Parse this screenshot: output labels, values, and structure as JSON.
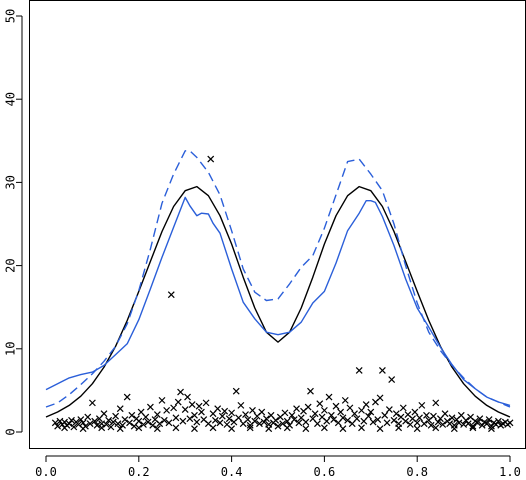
{
  "chart_data": {
    "type": "line",
    "title": "",
    "xlabel": "",
    "ylabel": "",
    "xlim": [
      0,
      1
    ],
    "ylim": [
      0,
      50
    ],
    "x_ticks": [
      "0.0",
      "0.2",
      "0.4",
      "0.6",
      "0.8",
      "1.0"
    ],
    "y_ticks": [
      "0",
      "10",
      "20",
      "30",
      "40",
      "50"
    ],
    "x_tick_values": [
      0,
      0.2,
      0.4,
      0.6,
      0.8,
      1.0
    ],
    "y_tick_values": [
      0,
      10,
      20,
      30,
      40,
      50
    ],
    "grid": false,
    "series": [
      {
        "style": "solid",
        "color": "#000000",
        "x": [
          0,
          0.025,
          0.05,
          0.075,
          0.1,
          0.125,
          0.15,
          0.175,
          0.2,
          0.225,
          0.25,
          0.275,
          0.3,
          0.325,
          0.35,
          0.375,
          0.4,
          0.425,
          0.45,
          0.475,
          0.5,
          0.525,
          0.55,
          0.575,
          0.6,
          0.625,
          0.65,
          0.675,
          0.7,
          0.725,
          0.75,
          0.775,
          0.8,
          0.825,
          0.85,
          0.875,
          0.9,
          0.925,
          0.95,
          0.975,
          1.0
        ],
        "y": [
          1.8,
          2.4,
          3.2,
          4.3,
          5.8,
          7.8,
          10.3,
          13.4,
          16.9,
          20.5,
          24.1,
          27.1,
          29.0,
          29.5,
          28.4,
          26.0,
          22.6,
          18.6,
          14.9,
          12.0,
          10.8,
          12.0,
          14.9,
          18.6,
          22.6,
          26.0,
          28.4,
          29.5,
          29.0,
          27.1,
          24.1,
          20.5,
          16.9,
          13.4,
          10.3,
          7.8,
          5.8,
          4.3,
          3.2,
          2.4,
          1.8
        ]
      },
      {
        "style": "solid",
        "color": "#2b5fd9",
        "x": [
          0,
          0.025,
          0.05,
          0.075,
          0.1,
          0.125,
          0.15,
          0.175,
          0.2,
          0.225,
          0.25,
          0.275,
          0.3,
          0.31,
          0.325,
          0.335,
          0.35,
          0.36,
          0.375,
          0.4,
          0.425,
          0.45,
          0.475,
          0.5,
          0.525,
          0.55,
          0.575,
          0.6,
          0.625,
          0.65,
          0.675,
          0.69,
          0.7,
          0.71,
          0.725,
          0.75,
          0.775,
          0.8,
          0.825,
          0.85,
          0.875,
          0.9,
          0.925,
          0.95,
          0.975,
          1.0
        ],
        "y": [
          5.1,
          5.8,
          6.5,
          6.9,
          7.2,
          8.0,
          9.3,
          10.6,
          13.5,
          17.2,
          21.0,
          24.6,
          28.2,
          27.2,
          26.0,
          26.3,
          26.2,
          25.1,
          23.9,
          19.6,
          15.6,
          13.6,
          12.0,
          11.7,
          12.0,
          13.2,
          15.5,
          16.9,
          20.3,
          24.2,
          26.3,
          27.8,
          27.8,
          27.6,
          25.9,
          22.4,
          18.4,
          14.9,
          12.6,
          10.2,
          8.1,
          6.3,
          5.2,
          4.2,
          3.6,
          3.2
        ]
      },
      {
        "style": "dashed",
        "color": "#2b5fd9",
        "x": [
          0,
          0.025,
          0.05,
          0.075,
          0.1,
          0.125,
          0.15,
          0.175,
          0.2,
          0.225,
          0.25,
          0.275,
          0.3,
          0.31,
          0.325,
          0.35,
          0.375,
          0.4,
          0.425,
          0.45,
          0.475,
          0.5,
          0.525,
          0.55,
          0.575,
          0.6,
          0.625,
          0.65,
          0.675,
          0.7,
          0.725,
          0.75,
          0.775,
          0.8,
          0.825,
          0.85,
          0.875,
          0.9,
          0.925,
          0.95,
          0.975,
          1.0
        ],
        "y": [
          3.0,
          3.5,
          4.5,
          5.7,
          7.0,
          8.5,
          10.3,
          13.0,
          17.0,
          22.0,
          27.5,
          31.0,
          33.8,
          33.8,
          33.0,
          31.2,
          28.5,
          24.2,
          19.6,
          16.8,
          15.8,
          16.0,
          17.8,
          19.8,
          21.2,
          24.5,
          28.5,
          32.5,
          32.8,
          31.0,
          29.0,
          25.0,
          20.0,
          15.5,
          12.0,
          9.8,
          8.0,
          6.5,
          5.2,
          4.2,
          3.6,
          3.0
        ]
      }
    ],
    "scatter_points": [
      [
        0.02,
        1.1
      ],
      [
        0.025,
        0.7
      ],
      [
        0.03,
        1.3
      ],
      [
        0.035,
        0.9
      ],
      [
        0.04,
        1.2
      ],
      [
        0.045,
        0.8
      ],
      [
        0.05,
        1.0
      ],
      [
        0.055,
        1.4
      ],
      [
        0.06,
        0.6
      ],
      [
        0.065,
        1.2
      ],
      [
        0.07,
        0.9
      ],
      [
        0.075,
        1.5
      ],
      [
        0.08,
        1.1
      ],
      [
        0.085,
        0.7
      ],
      [
        0.09,
        1.8
      ],
      [
        0.095,
        1.0
      ],
      [
        0.1,
        3.5
      ],
      [
        0.105,
        1.3
      ],
      [
        0.11,
        0.8
      ],
      [
        0.115,
        1.6
      ],
      [
        0.12,
        1.0
      ],
      [
        0.125,
        2.2
      ],
      [
        0.13,
        0.9
      ],
      [
        0.135,
        1.4
      ],
      [
        0.14,
        0.6
      ],
      [
        0.145,
        1.2
      ],
      [
        0.15,
        1.9
      ],
      [
        0.155,
        1.0
      ],
      [
        0.16,
        2.8
      ],
      [
        0.165,
        0.8
      ],
      [
        0.17,
        1.5
      ],
      [
        0.175,
        4.2
      ],
      [
        0.18,
        1.1
      ],
      [
        0.185,
        2.0
      ],
      [
        0.19,
        0.7
      ],
      [
        0.195,
        1.6
      ],
      [
        0.2,
        1.3
      ],
      [
        0.205,
        2.4
      ],
      [
        0.21,
        0.9
      ],
      [
        0.215,
        1.8
      ],
      [
        0.22,
        1.2
      ],
      [
        0.225,
        3.0
      ],
      [
        0.23,
        0.8
      ],
      [
        0.235,
        1.5
      ],
      [
        0.24,
        2.1
      ],
      [
        0.245,
        1.0
      ],
      [
        0.25,
        3.8
      ],
      [
        0.255,
        1.4
      ],
      [
        0.26,
        2.6
      ],
      [
        0.265,
        1.1
      ],
      [
        0.27,
        16.5
      ],
      [
        0.275,
        2.9
      ],
      [
        0.28,
        1.7
      ],
      [
        0.285,
        3.6
      ],
      [
        0.29,
        4.8
      ],
      [
        0.295,
        1.3
      ],
      [
        0.3,
        2.7
      ],
      [
        0.305,
        4.2
      ],
      [
        0.31,
        1.6
      ],
      [
        0.315,
        3.3
      ],
      [
        0.32,
        2.0
      ],
      [
        0.325,
        1.2
      ],
      [
        0.33,
        3.1
      ],
      [
        0.335,
        2.4
      ],
      [
        0.34,
        1.5
      ],
      [
        0.345,
        3.5
      ],
      [
        0.35,
        1.0
      ],
      [
        0.355,
        32.8
      ],
      [
        0.36,
        2.2
      ],
      [
        0.365,
        1.4
      ],
      [
        0.37,
        2.8
      ],
      [
        0.375,
        1.1
      ],
      [
        0.38,
        1.9
      ],
      [
        0.385,
        2.5
      ],
      [
        0.39,
        0.9
      ],
      [
        0.395,
        1.6
      ],
      [
        0.4,
        2.3
      ],
      [
        0.405,
        1.2
      ],
      [
        0.41,
        4.9
      ],
      [
        0.415,
        1.7
      ],
      [
        0.42,
        3.2
      ],
      [
        0.425,
        1.0
      ],
      [
        0.43,
        2.1
      ],
      [
        0.435,
        1.5
      ],
      [
        0.44,
        0.8
      ],
      [
        0.445,
        2.6
      ],
      [
        0.45,
        1.3
      ],
      [
        0.455,
        1.9
      ],
      [
        0.46,
        1.0
      ],
      [
        0.465,
        2.4
      ],
      [
        0.47,
        1.2
      ],
      [
        0.475,
        1.6
      ],
      [
        0.48,
        0.9
      ],
      [
        0.485,
        2.0
      ],
      [
        0.49,
        1.1
      ],
      [
        0.495,
        1.4
      ],
      [
        0.5,
        0.7
      ],
      [
        0.505,
        1.8
      ],
      [
        0.51,
        1.0
      ],
      [
        0.515,
        2.3
      ],
      [
        0.52,
        1.3
      ],
      [
        0.525,
        0.8
      ],
      [
        0.53,
        2.0
      ],
      [
        0.535,
        1.5
      ],
      [
        0.54,
        2.8
      ],
      [
        0.545,
        1.1
      ],
      [
        0.55,
        1.7
      ],
      [
        0.555,
        2.5
      ],
      [
        0.56,
        1.2
      ],
      [
        0.565,
        3.0
      ],
      [
        0.57,
        4.9
      ],
      [
        0.575,
        1.6
      ],
      [
        0.58,
        2.2
      ],
      [
        0.585,
        1.0
      ],
      [
        0.59,
        3.4
      ],
      [
        0.595,
        1.8
      ],
      [
        0.6,
        2.6
      ],
      [
        0.605,
        1.3
      ],
      [
        0.61,
        4.2
      ],
      [
        0.615,
        2.0
      ],
      [
        0.62,
        1.5
      ],
      [
        0.625,
        3.1
      ],
      [
        0.63,
        1.1
      ],
      [
        0.635,
        2.4
      ],
      [
        0.64,
        1.7
      ],
      [
        0.645,
        3.8
      ],
      [
        0.65,
        1.4
      ],
      [
        0.655,
        2.9
      ],
      [
        0.66,
        1.0
      ],
      [
        0.665,
        2.2
      ],
      [
        0.67,
        1.6
      ],
      [
        0.675,
        7.4
      ],
      [
        0.68,
        2.6
      ],
      [
        0.685,
        1.3
      ],
      [
        0.69,
        3.3
      ],
      [
        0.695,
        1.9
      ],
      [
        0.7,
        2.4
      ],
      [
        0.705,
        1.2
      ],
      [
        0.71,
        3.6
      ],
      [
        0.715,
        1.5
      ],
      [
        0.72,
        4.1
      ],
      [
        0.725,
        7.4
      ],
      [
        0.73,
        2.0
      ],
      [
        0.735,
        1.1
      ],
      [
        0.74,
        2.7
      ],
      [
        0.745,
        6.3
      ],
      [
        0.75,
        1.4
      ],
      [
        0.755,
        2.2
      ],
      [
        0.76,
        1.0
      ],
      [
        0.765,
        1.8
      ],
      [
        0.77,
        2.9
      ],
      [
        0.775,
        1.3
      ],
      [
        0.78,
        2.1
      ],
      [
        0.785,
        0.9
      ],
      [
        0.79,
        1.6
      ],
      [
        0.795,
        2.4
      ],
      [
        0.8,
        1.1
      ],
      [
        0.805,
        1.7
      ],
      [
        0.81,
        3.2
      ],
      [
        0.815,
        1.0
      ],
      [
        0.82,
        2.0
      ],
      [
        0.825,
        1.4
      ],
      [
        0.83,
        0.8
      ],
      [
        0.835,
        1.9
      ],
      [
        0.84,
        3.5
      ],
      [
        0.845,
        1.2
      ],
      [
        0.85,
        1.6
      ],
      [
        0.855,
        0.9
      ],
      [
        0.86,
        2.2
      ],
      [
        0.865,
        1.3
      ],
      [
        0.87,
        1.0
      ],
      [
        0.875,
        1.7
      ],
      [
        0.88,
        0.8
      ],
      [
        0.885,
        1.5
      ],
      [
        0.89,
        1.1
      ],
      [
        0.895,
        2.0
      ],
      [
        0.9,
        0.9
      ],
      [
        0.905,
        1.4
      ],
      [
        0.91,
        1.0
      ],
      [
        0.915,
        1.8
      ],
      [
        0.92,
        0.7
      ],
      [
        0.925,
        1.3
      ],
      [
        0.93,
        1.1
      ],
      [
        0.935,
        1.6
      ],
      [
        0.94,
        0.8
      ],
      [
        0.945,
        1.2
      ],
      [
        0.95,
        1.0
      ],
      [
        0.955,
        1.5
      ],
      [
        0.96,
        0.7
      ],
      [
        0.965,
        1.1
      ],
      [
        0.97,
        0.9
      ],
      [
        0.975,
        1.3
      ],
      [
        0.98,
        0.8
      ],
      [
        0.985,
        1.0
      ],
      [
        0.99,
        1.2
      ],
      [
        0.995,
        0.9
      ],
      [
        1.0,
        1.1
      ],
      [
        0.04,
        0.5
      ],
      [
        0.08,
        0.4
      ],
      [
        0.12,
        0.5
      ],
      [
        0.16,
        0.4
      ],
      [
        0.2,
        0.5
      ],
      [
        0.24,
        0.4
      ],
      [
        0.28,
        0.5
      ],
      [
        0.32,
        0.4
      ],
      [
        0.36,
        0.5
      ],
      [
        0.4,
        0.4
      ],
      [
        0.44,
        0.5
      ],
      [
        0.48,
        0.4
      ],
      [
        0.52,
        0.5
      ],
      [
        0.56,
        0.4
      ],
      [
        0.6,
        0.5
      ],
      [
        0.64,
        0.4
      ],
      [
        0.68,
        0.5
      ],
      [
        0.72,
        0.4
      ],
      [
        0.76,
        0.5
      ],
      [
        0.8,
        0.4
      ],
      [
        0.84,
        0.5
      ],
      [
        0.88,
        0.4
      ],
      [
        0.92,
        0.5
      ],
      [
        0.96,
        0.4
      ]
    ]
  }
}
